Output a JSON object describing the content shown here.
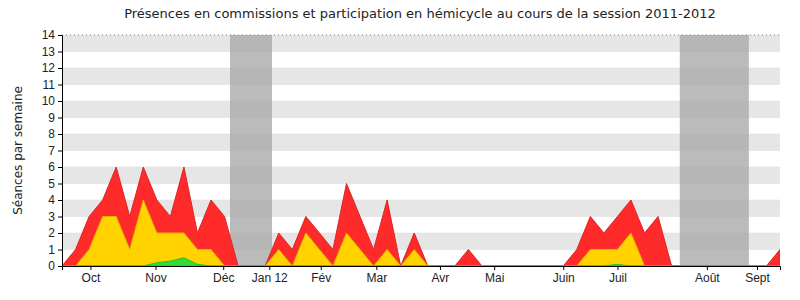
{
  "chart_data": {
    "type": "area",
    "title": "Présences en commissions et participation en hémicycle au cours de la session 2011-2012",
    "y_label": "Séances par semaine",
    "x": [
      0,
      1,
      2,
      3,
      4,
      5,
      6,
      7,
      8,
      9,
      10,
      11,
      12,
      13,
      14,
      15,
      16,
      17,
      18,
      19,
      20,
      21,
      22,
      23,
      24,
      25,
      26,
      27,
      28,
      29,
      30,
      31,
      32,
      33,
      34,
      35,
      36,
      37,
      38,
      39,
      40,
      41,
      42,
      43,
      44,
      45,
      46,
      47,
      48,
      49,
      50,
      51,
      52,
      53
    ],
    "series": [
      {
        "color": "#ff2a2a",
        "values": [
          0,
          1,
          3,
          4,
          6,
          3,
          6,
          4,
          3,
          6,
          2,
          4,
          3,
          0,
          0,
          0,
          2,
          1,
          3,
          2,
          1,
          5,
          3,
          1,
          4,
          0,
          2,
          0,
          0,
          0,
          1,
          0,
          0,
          0,
          0,
          0,
          0,
          0,
          1,
          3,
          2,
          3,
          4,
          2,
          3,
          0,
          0,
          0,
          0,
          0,
          0,
          0,
          0,
          1
        ]
      },
      {
        "color": "#ffd200",
        "values": [
          0,
          0,
          1,
          3,
          3,
          1,
          4,
          2,
          2,
          2,
          1,
          1,
          0,
          0,
          0,
          0,
          1,
          0,
          2,
          1,
          0,
          2,
          1,
          0,
          1,
          0,
          1,
          0,
          0,
          0,
          0,
          0,
          0,
          0,
          0,
          0,
          0,
          0,
          0,
          1,
          1,
          1,
          2,
          0,
          0,
          0,
          0,
          0,
          0,
          0,
          0,
          0,
          0,
          0
        ]
      },
      {
        "color": "#33dd33",
        "values": [
          0,
          0,
          0,
          0,
          0,
          0,
          0,
          0.2,
          0.3,
          0.5,
          0.1,
          0,
          0,
          0,
          0,
          0,
          0,
          0,
          0,
          0,
          0,
          0,
          0,
          0,
          0,
          0,
          0,
          0,
          0,
          0,
          0,
          0,
          0,
          0,
          0,
          0,
          0,
          0,
          0,
          0,
          0,
          0.1,
          0,
          0,
          0,
          0,
          0,
          0,
          0,
          0,
          0,
          0,
          0,
          0
        ]
      }
    ],
    "shaded_ranges": [
      [
        12.4,
        15.5
      ],
      [
        45.6,
        50.7
      ]
    ],
    "xlim": [
      0,
      53
    ],
    "xticks": [
      {
        "value": 2.1,
        "label": "Oct"
      },
      {
        "value": 6.9,
        "label": "Nov"
      },
      {
        "value": 11.9,
        "label": "Déc"
      },
      {
        "value": 15.3,
        "label": "Jan 12"
      },
      {
        "value": 19.1,
        "label": "Fév"
      },
      {
        "value": 23.2,
        "label": "Mar"
      },
      {
        "value": 27.9,
        "label": "Avr"
      },
      {
        "value": 31.9,
        "label": "Mai"
      },
      {
        "value": 37.0,
        "label": "Juin"
      },
      {
        "value": 41.0,
        "label": "Juil"
      },
      {
        "value": 47.6,
        "label": "Août"
      },
      {
        "value": 51.3,
        "label": "Sept"
      }
    ],
    "ylim": [
      0,
      14
    ],
    "yticks": [
      0,
      1,
      2,
      3,
      4,
      5,
      6,
      7,
      8,
      9,
      10,
      11,
      12,
      13,
      14
    ],
    "grid": true,
    "stacked": false
  }
}
